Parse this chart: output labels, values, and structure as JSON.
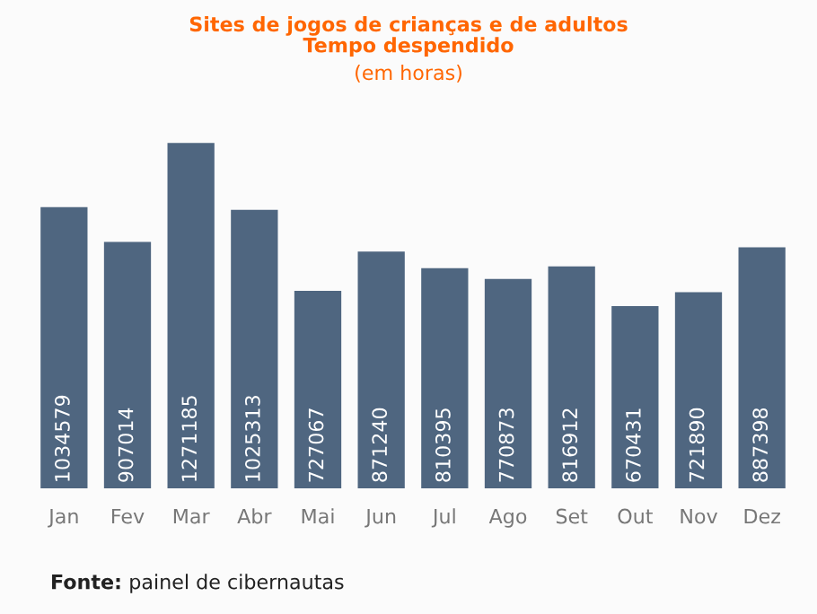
{
  "chart_data": {
    "type": "bar",
    "title": "Sites de jogos de crianças e de adultos\nTempo despendido",
    "subtitle": "(em horas)",
    "categories": [
      "Jan",
      "Fev",
      "Mar",
      "Abr",
      "Mai",
      "Jun",
      "Jul",
      "Ago",
      "Set",
      "Out",
      "Nov",
      "Dez"
    ],
    "values": [
      1034579,
      907014,
      1271185,
      1025313,
      727067,
      871240,
      810395,
      770873,
      816912,
      670431,
      721890,
      887398
    ],
    "color": "#4f6680",
    "data_labels": true,
    "grid": false,
    "legend": false,
    "annotations": [
      "Fonte: painel de cibernautas"
    ]
  }
}
